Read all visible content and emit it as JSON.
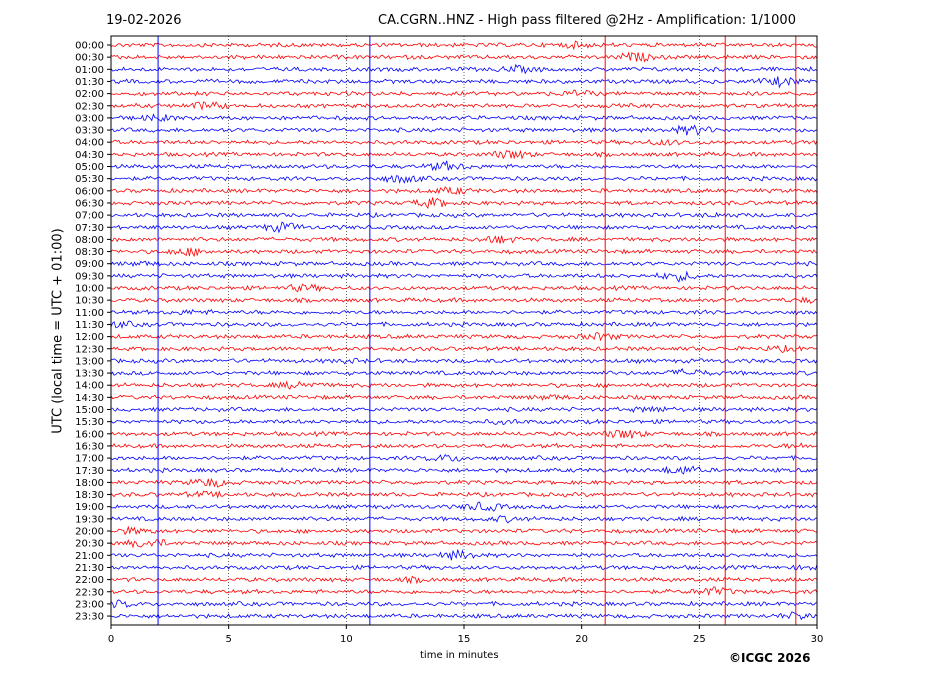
{
  "header": {
    "date": "19-02-2026",
    "title": "CA.CGRN..HNZ - High pass filtered @2Hz - Amplification: 1/1000"
  },
  "footer": {
    "copyright": "©ICGC 2026"
  },
  "chart_data": {
    "type": "line",
    "title": "CA.CGRN..HNZ - High pass filtered @2Hz - Amplification: 1/1000",
    "xlabel": "time in minutes",
    "ylabel": "UTC (local time = UTC + 01:00)",
    "xlim": [
      0,
      30
    ],
    "x_ticks": [
      0,
      5,
      10,
      15,
      20,
      25,
      30
    ],
    "x_tick_labels": [
      "0",
      "5",
      "10",
      "15",
      "20",
      "25",
      "30"
    ],
    "y_tick_labels": [
      "00:00",
      "00:30",
      "01:00",
      "01:30",
      "02:00",
      "02:30",
      "03:00",
      "03:30",
      "04:00",
      "04:30",
      "05:00",
      "05:30",
      "06:00",
      "06:30",
      "07:00",
      "07:30",
      "08:00",
      "08:30",
      "09:00",
      "09:30",
      "10:00",
      "10:30",
      "11:00",
      "11:30",
      "12:00",
      "12:30",
      "13:00",
      "13:30",
      "14:00",
      "14:30",
      "15:00",
      "15:30",
      "16:00",
      "16:30",
      "17:00",
      "17:30",
      "18:00",
      "18:30",
      "19:00",
      "19:30",
      "20:00",
      "20:30",
      "21:00",
      "21:30",
      "22:00",
      "22:30",
      "23:00",
      "23:30"
    ],
    "grid": "vertical dotted at each x tick",
    "colors": {
      "blue": "#0000ff",
      "red": "#ff0000",
      "odd_hour_alt": "red/blue alternating by hour"
    },
    "vertical_spikes": [
      {
        "x": 2.0,
        "color": "#0000ff"
      },
      {
        "x": 11.0,
        "color": "#0000ff"
      },
      {
        "x": 21.0,
        "color": "#ff0000"
      },
      {
        "x": 26.1,
        "color": "#ff0000"
      },
      {
        "x": 29.1,
        "color": "#ff0000"
      }
    ]
  }
}
